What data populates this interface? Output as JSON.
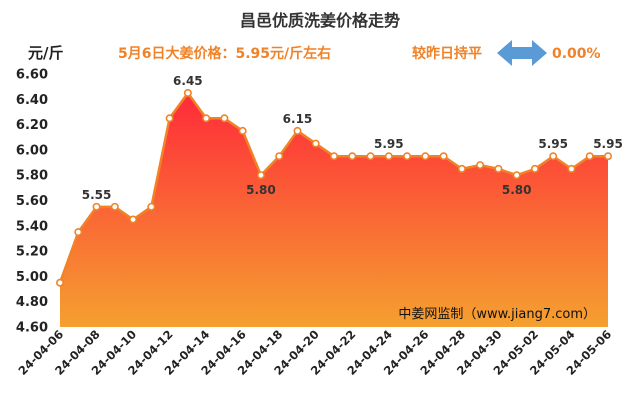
{
  "header": {
    "title": "昌邑优质洗姜价格走势",
    "price_info": "5月6日大姜价格：5.95元/斤左右",
    "change_label": "较昨日持平",
    "change_value": "0.00%"
  },
  "watermark": "中姜网监制（www.jiang7.com）",
  "colors": {
    "line": "#f08228",
    "area_top": "#ff2a3a",
    "area_bottom": "#f5a030",
    "arrow": "#5b9bd5"
  },
  "chart_data": {
    "type": "area",
    "title": "昌邑优质洗姜价格走势",
    "ylabel": "元/斤",
    "xlabel": "",
    "ylim": [
      4.6,
      6.6
    ],
    "yticks": [
      "4.60",
      "4.80",
      "5.00",
      "5.20",
      "5.40",
      "5.60",
      "5.80",
      "6.00",
      "6.20",
      "6.40",
      "6.60"
    ],
    "grid": false,
    "x": [
      "24-04-06",
      "24-04-07",
      "24-04-08",
      "24-04-09",
      "24-04-10",
      "24-04-11",
      "24-04-12",
      "24-04-13",
      "24-04-14",
      "24-04-15",
      "24-04-16",
      "24-04-17",
      "24-04-18",
      "24-04-19",
      "24-04-20",
      "24-04-21",
      "24-04-22",
      "24-04-23",
      "24-04-24",
      "24-04-25",
      "24-04-26",
      "24-04-27",
      "24-04-28",
      "24-04-29",
      "24-04-30",
      "24-05-01",
      "24-05-02",
      "24-05-03",
      "24-05-04",
      "24-05-05",
      "24-05-06"
    ],
    "xtick_labels": [
      "24-04-06",
      "24-04-08",
      "24-04-10",
      "24-04-12",
      "24-04-14",
      "24-04-16",
      "24-04-18",
      "24-04-20",
      "24-04-22",
      "24-04-24",
      "24-04-26",
      "24-04-28",
      "24-04-30",
      "24-05-02",
      "24-05-04",
      "24-05-06"
    ],
    "values": [
      4.95,
      5.35,
      5.55,
      5.55,
      5.45,
      5.55,
      6.25,
      6.45,
      6.25,
      6.25,
      6.15,
      5.8,
      5.95,
      6.15,
      6.05,
      5.95,
      5.95,
      5.95,
      5.95,
      5.95,
      5.95,
      5.95,
      5.85,
      5.88,
      5.85,
      5.8,
      5.85,
      5.95,
      5.85,
      5.95,
      5.95
    ],
    "data_labels": [
      {
        "index": 2,
        "text": "5.55"
      },
      {
        "index": 7,
        "text": "6.45"
      },
      {
        "index": 11,
        "text": "5.80"
      },
      {
        "index": 13,
        "text": "6.15"
      },
      {
        "index": 18,
        "text": "5.95"
      },
      {
        "index": 25,
        "text": "5.80"
      },
      {
        "index": 27,
        "text": "5.95"
      },
      {
        "index": 30,
        "text": "5.95"
      }
    ]
  }
}
